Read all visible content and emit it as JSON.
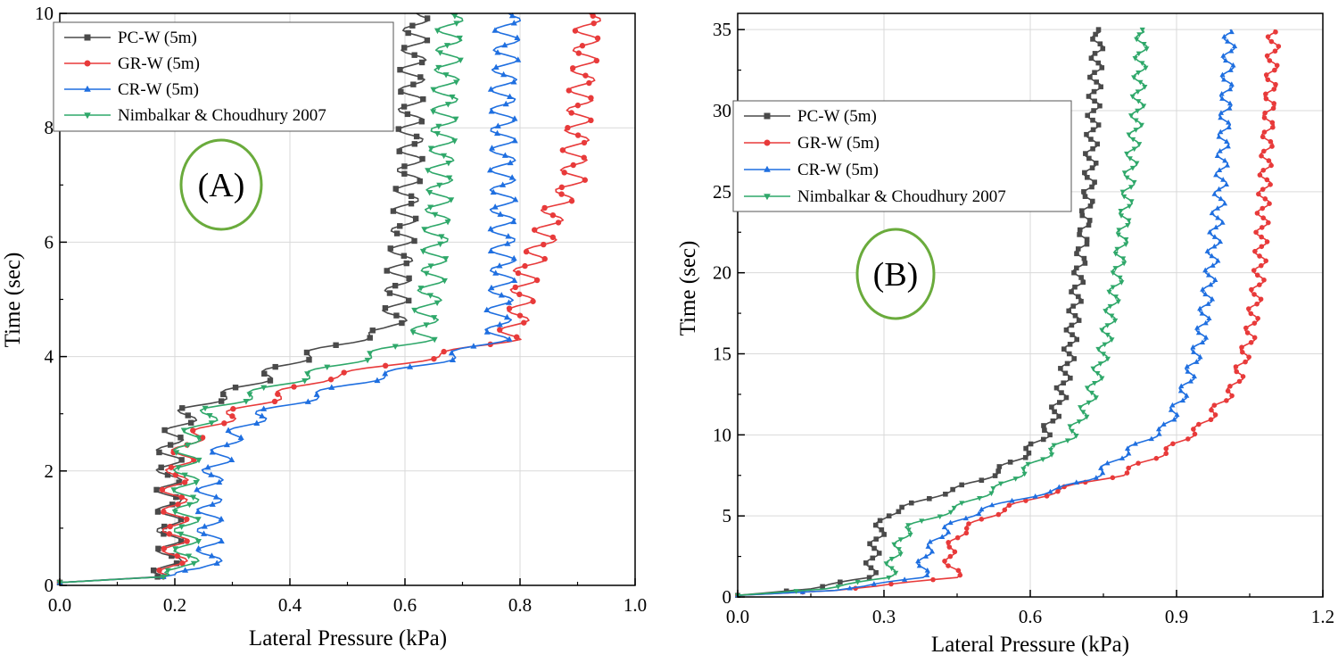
{
  "chart_data": [
    {
      "type": "line",
      "panel_label": "(A)",
      "xlabel": "Lateral Pressure (kPa)",
      "ylabel": "Time (sec)",
      "xlim": [
        0,
        1.0
      ],
      "ylim": [
        0,
        10
      ],
      "xticks": [
        0.0,
        0.2,
        0.4,
        0.6,
        0.8,
        1.0
      ],
      "xtick_labels": [
        "0.0",
        "0.2",
        "0.4",
        "0.6",
        "0.8",
        "1.0"
      ],
      "yticks": [
        0,
        2,
        4,
        6,
        8,
        10
      ],
      "ytick_labels": [
        "0",
        "2",
        "4",
        "6",
        "8",
        "10"
      ],
      "grid": true,
      "legend_position": "top-left",
      "series": [
        {
          "name": "PC-W (5m)",
          "color": "#4a4a4a",
          "marker": "square",
          "points": [
            [
              0.0,
              0.05
            ],
            [
              0.17,
              0.15
            ],
            [
              0.19,
              0.3
            ],
            [
              0.19,
              1.8
            ],
            [
              0.19,
              2.5
            ],
            [
              0.23,
              3.1
            ],
            [
              0.33,
              3.5
            ],
            [
              0.4,
              3.9
            ],
            [
              0.48,
              4.2
            ],
            [
              0.58,
              4.5
            ],
            [
              0.59,
              5.5
            ],
            [
              0.6,
              6.5
            ],
            [
              0.61,
              7.5
            ],
            [
              0.61,
              8.5
            ],
            [
              0.62,
              10.0
            ]
          ],
          "amp": 0.022,
          "period": 0.35
        },
        {
          "name": "GR-W (5m)",
          "color": "#e83a3a",
          "marker": "circle",
          "points": [
            [
              0.0,
              0.05
            ],
            [
              0.18,
              0.15
            ],
            [
              0.2,
              0.3
            ],
            [
              0.2,
              1.8
            ],
            [
              0.22,
              2.5
            ],
            [
              0.3,
              3.0
            ],
            [
              0.45,
              3.6
            ],
            [
              0.65,
              4.0
            ],
            [
              0.78,
              4.3
            ],
            [
              0.8,
              4.8
            ],
            [
              0.81,
              5.5
            ],
            [
              0.84,
              6.0
            ],
            [
              0.86,
              6.6
            ],
            [
              0.89,
              7.0
            ],
            [
              0.9,
              8.0
            ],
            [
              0.91,
              9.0
            ],
            [
              0.92,
              10.0
            ]
          ],
          "amp": 0.022,
          "period": 0.35
        },
        {
          "name": "CR-W (5m)",
          "color": "#1f6fe0",
          "marker": "triangle-up",
          "points": [
            [
              0.0,
              0.05
            ],
            [
              0.18,
              0.15
            ],
            [
              0.26,
              0.3
            ],
            [
              0.26,
              1.8
            ],
            [
              0.29,
              2.5
            ],
            [
              0.35,
              3.0
            ],
            [
              0.5,
              3.5
            ],
            [
              0.65,
              3.9
            ],
            [
              0.76,
              4.3
            ],
            [
              0.77,
              5.5
            ],
            [
              0.77,
              7.0
            ],
            [
              0.77,
              8.5
            ],
            [
              0.78,
              10.0
            ]
          ],
          "amp": 0.022,
          "period": 0.35
        },
        {
          "name": "Nimbalkar & Choudhury 2007",
          "color": "#2fa86a",
          "marker": "triangle-down",
          "points": [
            [
              0.0,
              0.05
            ],
            [
              0.18,
              0.15
            ],
            [
              0.22,
              0.3
            ],
            [
              0.22,
              1.8
            ],
            [
              0.22,
              2.5
            ],
            [
              0.27,
              3.1
            ],
            [
              0.38,
              3.5
            ],
            [
              0.5,
              3.9
            ],
            [
              0.63,
              4.3
            ],
            [
              0.65,
              5.5
            ],
            [
              0.66,
              7.0
            ],
            [
              0.67,
              8.5
            ],
            [
              0.68,
              10.0
            ]
          ],
          "amp": 0.022,
          "period": 0.35
        }
      ]
    },
    {
      "type": "line",
      "panel_label": "(B)",
      "xlabel": "Lateral Pressure (kPa)",
      "ylabel": "Time (sec)",
      "xlim": [
        0,
        1.2
      ],
      "ylim": [
        0,
        36
      ],
      "xticks": [
        0.0,
        0.3,
        0.6,
        0.9,
        1.2
      ],
      "xtick_labels": [
        "0.0",
        "0.3",
        "0.6",
        "0.9",
        "1.2"
      ],
      "yticks": [
        0,
        5,
        10,
        15,
        20,
        25,
        30,
        35
      ],
      "ytick_labels": [
        "0",
        "5",
        "10",
        "15",
        "20",
        "25",
        "30",
        "35"
      ],
      "grid": true,
      "legend_position": "upper-left",
      "series": [
        {
          "name": "PC-W (5m)",
          "color": "#4a4a4a",
          "marker": "square",
          "points": [
            [
              0.0,
              0.1
            ],
            [
              0.15,
              0.5
            ],
            [
              0.27,
              1.2
            ],
            [
              0.28,
              3.0
            ],
            [
              0.3,
              5.0
            ],
            [
              0.4,
              6.2
            ],
            [
              0.5,
              7.2
            ],
            [
              0.58,
              8.6
            ],
            [
              0.63,
              10.0
            ],
            [
              0.66,
              12.0
            ],
            [
              0.68,
              15.0
            ],
            [
              0.7,
              20.0
            ],
            [
              0.72,
              25.0
            ],
            [
              0.73,
              30.0
            ],
            [
              0.74,
              35.0
            ]
          ],
          "amp": 0.012,
          "period": 1.2
        },
        {
          "name": "GR-W (5m)",
          "color": "#e83a3a",
          "marker": "circle",
          "points": [
            [
              0.0,
              0.1
            ],
            [
              0.2,
              0.4
            ],
            [
              0.45,
              1.2
            ],
            [
              0.43,
              2.5
            ],
            [
              0.45,
              3.8
            ],
            [
              0.5,
              4.8
            ],
            [
              0.58,
              5.8
            ],
            [
              0.68,
              6.8
            ],
            [
              0.78,
              7.5
            ],
            [
              0.88,
              9.0
            ],
            [
              0.95,
              10.5
            ],
            [
              1.02,
              13.0
            ],
            [
              1.05,
              16.0
            ],
            [
              1.07,
              20.0
            ],
            [
              1.08,
              25.0
            ],
            [
              1.09,
              30.0
            ],
            [
              1.1,
              35.0
            ]
          ],
          "amp": 0.012,
          "period": 1.2
        },
        {
          "name": "CR-W (5m)",
          "color": "#1f6fe0",
          "marker": "triangle-up",
          "points": [
            [
              0.0,
              0.1
            ],
            [
              0.2,
              0.4
            ],
            [
              0.38,
              1.2
            ],
            [
              0.38,
              2.5
            ],
            [
              0.43,
              4.3
            ],
            [
              0.5,
              5.4
            ],
            [
              0.6,
              6.2
            ],
            [
              0.72,
              7.2
            ],
            [
              0.8,
              9.0
            ],
            [
              0.88,
              10.5
            ],
            [
              0.92,
              13.0
            ],
            [
              0.95,
              16.0
            ],
            [
              0.97,
              20.0
            ],
            [
              0.99,
              25.0
            ],
            [
              1.0,
              30.0
            ],
            [
              1.01,
              35.0
            ]
          ],
          "amp": 0.012,
          "period": 1.2
        },
        {
          "name": "Nimbalkar & Choudhury 2007",
          "color": "#2fa86a",
          "marker": "triangle-down",
          "points": [
            [
              0.0,
              0.1
            ],
            [
              0.18,
              0.5
            ],
            [
              0.31,
              1.2
            ],
            [
              0.32,
              2.5
            ],
            [
              0.35,
              4.3
            ],
            [
              0.45,
              5.5
            ],
            [
              0.55,
              7.0
            ],
            [
              0.62,
              8.5
            ],
            [
              0.68,
              9.8
            ],
            [
              0.72,
              12.0
            ],
            [
              0.75,
              15.0
            ],
            [
              0.78,
              20.0
            ],
            [
              0.8,
              25.0
            ],
            [
              0.82,
              30.0
            ],
            [
              0.83,
              35.0
            ]
          ],
          "amp": 0.012,
          "period": 1.2
        }
      ]
    }
  ]
}
